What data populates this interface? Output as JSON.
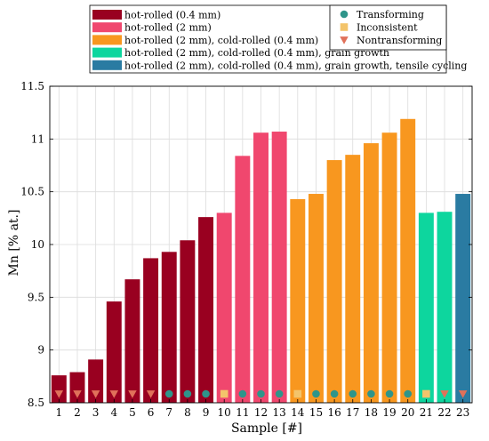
{
  "chart_data": {
    "type": "bar",
    "xlabel": "Sample [#]",
    "ylabel": "Mn [% at.]",
    "ylim": [
      8.5,
      11.5
    ],
    "yticks": [
      8.5,
      9,
      9.5,
      10,
      10.5,
      11,
      11.5
    ],
    "ytick_labels": [
      "8.5",
      "9",
      "9.5",
      "10",
      "10.5",
      "11",
      "11.5"
    ],
    "grid": true,
    "categories": [
      "1",
      "2",
      "3",
      "4",
      "5",
      "6",
      "7",
      "8",
      "9",
      "10",
      "11",
      "12",
      "13",
      "14",
      "15",
      "16",
      "17",
      "18",
      "19",
      "20",
      "21",
      "22",
      "23"
    ],
    "values": [
      8.76,
      8.79,
      8.91,
      9.46,
      9.67,
      9.87,
      9.93,
      10.04,
      10.26,
      10.3,
      10.84,
      11.06,
      11.07,
      10.43,
      10.48,
      10.8,
      10.85,
      10.96,
      11.06,
      11.19,
      10.3,
      10.31,
      10.48
    ],
    "groups": [
      "hr04",
      "hr04",
      "hr04",
      "hr04",
      "hr04",
      "hr04",
      "hr04",
      "hr04",
      "hr04",
      "hr2",
      "hr2",
      "hr2",
      "hr2",
      "cr",
      "cr",
      "cr",
      "cr",
      "cr",
      "cr",
      "cr",
      "gg",
      "gg",
      "tc"
    ],
    "markers": [
      "N",
      "N",
      "N",
      "N",
      "N",
      "N",
      "T",
      "T",
      "T",
      "I",
      "T",
      "T",
      "T",
      "I",
      "T",
      "T",
      "T",
      "T",
      "T",
      "T",
      "I",
      "N",
      "N"
    ],
    "treatments": [
      {
        "key": "hr04",
        "label": "hot-rolled (0.4 mm)",
        "color": "#990020"
      },
      {
        "key": "hr2",
        "label": "hot-rolled (2 mm)",
        "color": "#f0476e"
      },
      {
        "key": "cr",
        "label": "hot-rolled (2 mm), cold-rolled (0.4 mm)",
        "color": "#f8971f"
      },
      {
        "key": "gg",
        "label": "hot-rolled (2 mm), cold-rolled (0.4 mm), grain growth",
        "color": "#0dd69e"
      },
      {
        "key": "tc",
        "label": "hot-rolled (2 mm), cold-rolled (0.4 mm), grain growth, tensile cycling",
        "color": "#2a7ba2"
      }
    ],
    "marker_types": [
      {
        "key": "T",
        "label": "Transforming",
        "shape": "circle",
        "color": "#2e958a"
      },
      {
        "key": "I",
        "label": "Inconsistent",
        "shape": "square",
        "color": "#f3c46b"
      },
      {
        "key": "N",
        "label": "Nontransforming",
        "shape": "triangle-down",
        "color": "#e0715a"
      }
    ],
    "legend_placement": "top"
  }
}
